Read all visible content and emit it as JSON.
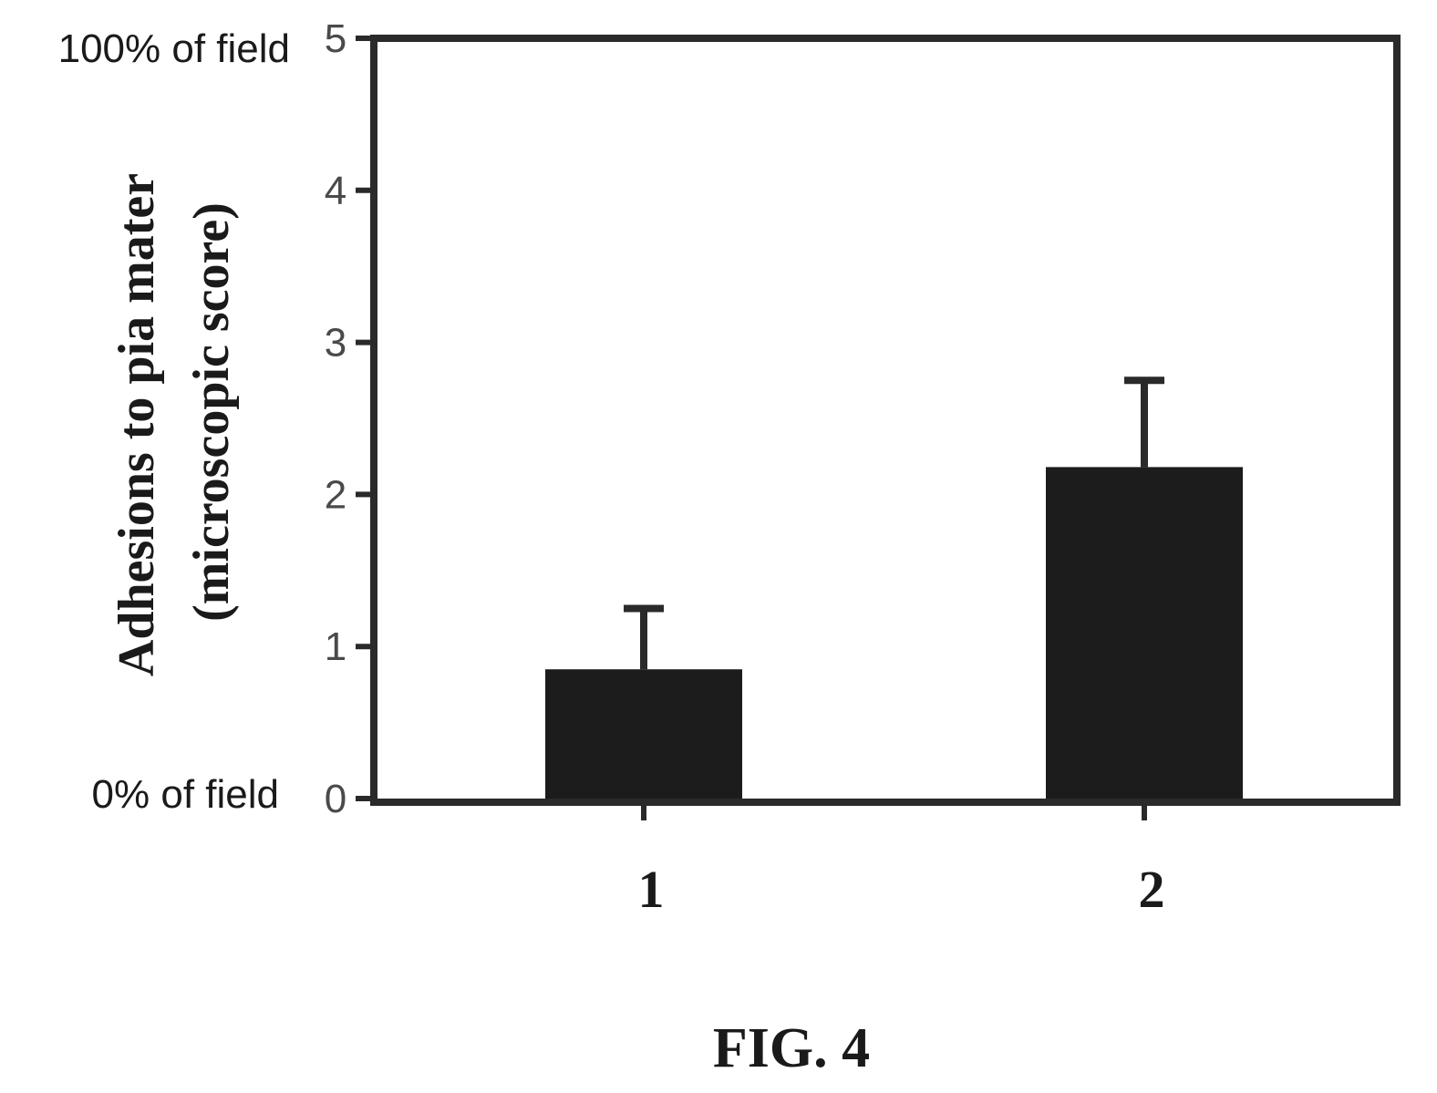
{
  "chart_data": {
    "type": "bar",
    "categories": [
      "1",
      "2"
    ],
    "values": [
      0.85,
      2.18
    ],
    "error": [
      0.4,
      0.57
    ],
    "ylabel_line1": "Adhesions to pia mater",
    "ylabel_line2": "(microscopic score)",
    "ylim": [
      0,
      5
    ],
    "yticks": [
      0,
      1,
      2,
      3,
      4,
      5
    ],
    "ytick_labels": [
      "0",
      "1",
      "2",
      "3",
      "4",
      "5"
    ],
    "ytop_annotation": "100% of field",
    "ybottom_annotation": "0% of field",
    "grid": false,
    "bar_color": "#1c1c1c"
  },
  "caption": "FIG. 4"
}
